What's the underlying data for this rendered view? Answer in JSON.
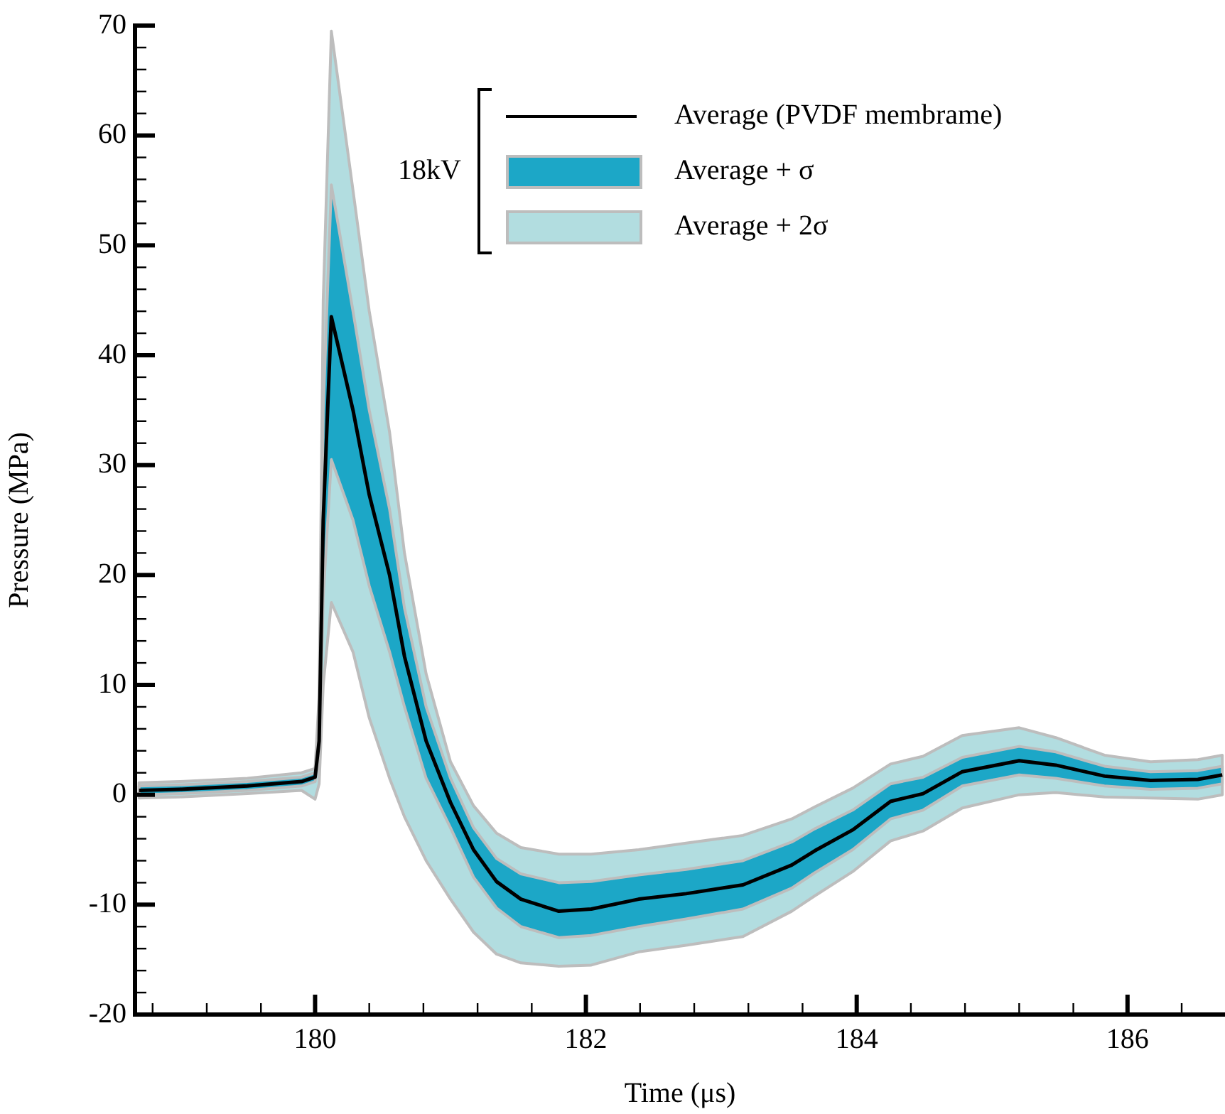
{
  "chart_data": {
    "type": "line",
    "xlabel": "Time (μs)",
    "ylabel": "Pressure (MPa)",
    "legend": "top right",
    "annotations": [
      "18kV"
    ],
    "xlim": [
      178.67,
      186.72
    ],
    "ylim": [
      -20,
      70
    ],
    "xticks": [
      {
        "value": 178.8,
        "label": null
      },
      {
        "value": 179.2,
        "label": null
      },
      {
        "value": 179.6,
        "label": null
      },
      180,
      {
        "value": 180.4,
        "label": null
      },
      {
        "value": 180.8,
        "label": null
      },
      {
        "value": 181.2,
        "label": null
      },
      {
        "value": 181.6,
        "label": null
      },
      182,
      {
        "value": 182.4,
        "label": null
      },
      {
        "value": 182.8,
        "label": null
      },
      {
        "value": 183.2,
        "label": null
      },
      {
        "value": 183.6,
        "label": null
      },
      184,
      {
        "value": 184.4,
        "label": null
      },
      {
        "value": 184.8,
        "label": null
      },
      {
        "value": 185.2,
        "label": null
      },
      {
        "value": 185.6,
        "label": null
      },
      186,
      {
        "value": 186.4,
        "label": null
      }
    ],
    "yticks": [
      -20,
      {
        "value": -18,
        "label": null
      },
      {
        "value": -16,
        "label": null
      },
      {
        "value": -14,
        "label": null
      },
      {
        "value": -12,
        "label": null
      },
      -10,
      {
        "value": -8,
        "label": null
      },
      {
        "value": -6,
        "label": null
      },
      {
        "value": -4,
        "label": null
      },
      {
        "value": -2,
        "label": null
      },
      0,
      {
        "value": 2,
        "label": null
      },
      {
        "value": 4,
        "label": null
      },
      {
        "value": 6,
        "label": null
      },
      {
        "value": 8,
        "label": null
      },
      10,
      {
        "value": 12,
        "label": null
      },
      {
        "value": 14,
        "label": null
      },
      {
        "value": 16,
        "label": null
      },
      {
        "value": 18,
        "label": null
      },
      20,
      {
        "value": 22,
        "label": null
      },
      {
        "value": 24,
        "label": null
      },
      {
        "value": 26,
        "label": null
      },
      {
        "value": 28,
        "label": null
      },
      30,
      {
        "value": 32,
        "label": null
      },
      {
        "value": 34,
        "label": null
      },
      {
        "value": 36,
        "label": null
      },
      {
        "value": 38,
        "label": null
      },
      40,
      {
        "value": 42,
        "label": null
      },
      {
        "value": 44,
        "label": null
      },
      {
        "value": 46,
        "label": null
      },
      {
        "value": 48,
        "label": null
      },
      50,
      {
        "value": 52,
        "label": null
      },
      {
        "value": 54,
        "label": null
      },
      {
        "value": 56,
        "label": null
      },
      {
        "value": 58,
        "label": null
      },
      60,
      {
        "value": 62,
        "label": null
      },
      {
        "value": 64,
        "label": null
      },
      {
        "value": 66,
        "label": null
      },
      {
        "value": 68,
        "label": null
      },
      70
    ],
    "marker": "none",
    "line_style": "solid",
    "x": [
      178.7,
      179.0,
      179.5,
      179.9,
      180.0,
      180.03,
      180.06,
      180.12,
      180.28,
      180.4,
      180.55,
      180.66,
      180.82,
      181.0,
      181.17,
      181.34,
      181.52,
      181.8,
      182.04,
      182.39,
      182.74,
      183.16,
      183.52,
      183.69,
      183.97,
      184.25,
      184.49,
      184.78,
      185.2,
      185.47,
      185.83,
      186.17,
      186.52,
      186.7
    ],
    "series": [
      {
        "name": "Average (PVDF membrame)",
        "color": "#000000",
        "values": [
          0.4,
          0.5,
          0.8,
          1.2,
          1.6,
          4.9,
          25,
          43.5,
          35,
          27.3,
          20,
          12.6,
          4.9,
          -0.7,
          -5.0,
          -7.9,
          -9.5,
          -10.6,
          -10.4,
          -9.5,
          -9.0,
          -8.2,
          -6.4,
          -5.1,
          -3.2,
          -0.6,
          0.1,
          2.1,
          3.1,
          2.7,
          1.7,
          1.3,
          1.4,
          1.8
        ]
      },
      {
        "name": "Average + σ",
        "color": "#1ca7c7",
        "values": [
          null,
          null,
          null,
          null,
          null,
          null,
          null,
          null,
          null,
          null,
          null,
          null,
          null,
          null,
          null,
          null,
          null,
          null,
          null,
          null,
          null,
          null,
          null,
          null,
          null,
          null,
          null,
          null,
          null,
          null,
          null,
          null,
          null,
          null
        ],
        "upper": [
          0.8,
          0.9,
          1.2,
          1.6,
          2.0,
          6,
          35,
          55.5,
          44,
          35,
          26,
          17,
          8,
          1.5,
          -3,
          -5.8,
          -7.2,
          -8,
          -7.9,
          -7.3,
          -6.8,
          -6,
          -4.3,
          -3.1,
          -1.4,
          1,
          1.6,
          3.4,
          4.4,
          3.9,
          2.6,
          2.1,
          2.2,
          2.6
        ],
        "lower": [
          0.0,
          0.1,
          0.4,
          0.8,
          1.2,
          3.5,
          18,
          30.5,
          25,
          19,
          13,
          8,
          1.5,
          -3,
          -7.5,
          -10.3,
          -12,
          -13,
          -12.8,
          -12,
          -11.3,
          -10.4,
          -8.5,
          -7.1,
          -5,
          -2.2,
          -1.4,
          0.8,
          1.8,
          1.5,
          0.8,
          0.5,
          0.6,
          1.0
        ]
      },
      {
        "name": "Average + 2σ",
        "color": "#b2dde0",
        "values": [
          null,
          null,
          null,
          null,
          null,
          null,
          null,
          null,
          null,
          null,
          null,
          null,
          null,
          null,
          null,
          null,
          null,
          null,
          null,
          null,
          null,
          null,
          null,
          null,
          null,
          null,
          null,
          null,
          null,
          null,
          null,
          null,
          null,
          null
        ],
        "upper": [
          1.1,
          1.2,
          1.5,
          2.0,
          2.4,
          9,
          45,
          69.5,
          55,
          44,
          33,
          22,
          11,
          3,
          -1,
          -3.5,
          -4.8,
          -5.4,
          -5.4,
          -5,
          -4.4,
          -3.7,
          -2.2,
          -1.1,
          0.6,
          2.8,
          3.5,
          5.4,
          6.1,
          5.2,
          3.6,
          3,
          3.2,
          3.6
        ],
        "lower": [
          -0.3,
          -0.2,
          0.1,
          0.4,
          -0.4,
          1,
          10,
          17.5,
          13,
          7,
          1.5,
          -2,
          -6,
          -9.5,
          -12.5,
          -14.5,
          -15.3,
          -15.6,
          -15.5,
          -14.3,
          -13.7,
          -12.9,
          -10.6,
          -9.2,
          -7,
          -4.2,
          -3.3,
          -1.2,
          0,
          0.2,
          -0.2,
          -0.3,
          -0.4,
          0
        ]
      }
    ]
  }
}
